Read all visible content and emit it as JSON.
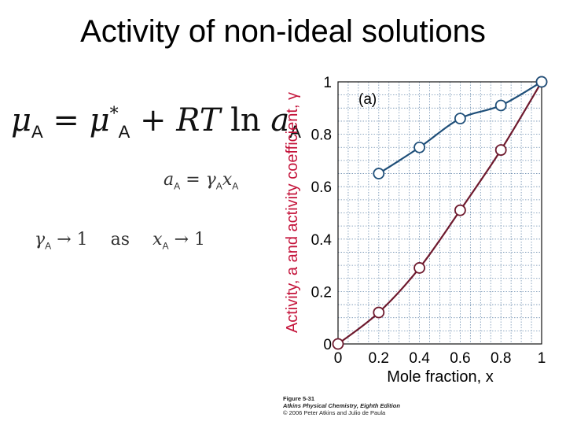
{
  "slide": {
    "title": "Activity of non-ideal solutions"
  },
  "equations": {
    "chemical_potential": {
      "mu": "μ",
      "sub_A": "A",
      "equals": "=",
      "mu_star": "μ",
      "star": "*",
      "plus": "+",
      "R": "R",
      "T": "T",
      "ln": "ln",
      "a": "a"
    },
    "activity_def": {
      "a": "a",
      "sub_A": "A",
      "equals": "=",
      "gamma": "γ",
      "x": "x"
    },
    "limit": {
      "gamma": "γ",
      "sub_A": "A",
      "arrow": "→",
      "one": "1",
      "as": "as",
      "x": "x"
    }
  },
  "caption": {
    "figure": "Figure 5-31",
    "book": "Atkins Physical Chemistry, Eighth Edition",
    "copyright": "© 2006 Peter Atkins and Julio de Paula"
  },
  "colors": {
    "activity_curve": "#6e1a2e",
    "activity_coefficient_curve": "#1f4f79",
    "axis_label": "#c4133a",
    "grid": "#6f8fb0"
  },
  "chart_data": {
    "type": "line",
    "panel_label": "(a)",
    "xlabel": "Mole fraction, x",
    "ylabel": "Activity, a and activity coefficient, γ",
    "xlim": [
      0,
      1
    ],
    "ylim": [
      0,
      1
    ],
    "x_ticks": [
      "0",
      "0.2",
      "0.4",
      "0.6",
      "0.8",
      "1"
    ],
    "y_ticks": [
      "0",
      "0.2",
      "0.4",
      "0.6",
      "0.8",
      "1"
    ],
    "grid": true,
    "series": [
      {
        "x": [
          0,
          0.2,
          0.4,
          0.6,
          0.8,
          1
        ],
        "y": [
          0,
          0.12,
          0.29,
          0.51,
          0.74,
          1
        ]
      },
      {
        "x": [
          0.2,
          0.4,
          0.6,
          0.8,
          1
        ],
        "y": [
          0.65,
          0.75,
          0.86,
          0.91,
          1
        ]
      }
    ]
  }
}
